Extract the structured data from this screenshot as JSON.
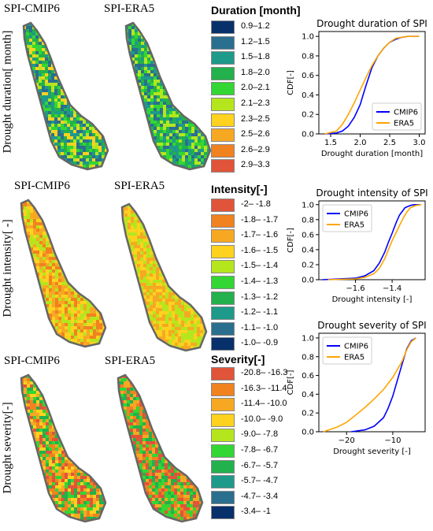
{
  "maps": {
    "col_titles": {
      "duration": [
        "SPI-CMIP6",
        "SPI-ERA5"
      ],
      "intensity": [
        "SPI-CMIP6",
        "SPI-ERA5"
      ],
      "severity": [
        "SPI-CMIP6",
        "SPI-ERA5"
      ]
    },
    "row_labels": {
      "duration": "Drought duration[ month]",
      "intensity": "Drought intensity[ -]",
      "severity": "Drought severity[-]"
    }
  },
  "legends": {
    "duration": {
      "title": "Duration [month]",
      "items": [
        {
          "label": "0.9–1.2",
          "color": "#08306b"
        },
        {
          "label": "1.2–1.5",
          "color": "#2b6f8e"
        },
        {
          "label": "1.5–1.8",
          "color": "#1e9a8a"
        },
        {
          "label": "1.8–2.0",
          "color": "#22b14c"
        },
        {
          "label": "2.0–2.1",
          "color": "#33d633"
        },
        {
          "label": "2.1–2.3",
          "color": "#b5e61d"
        },
        {
          "label": "2.3–2.5",
          "color": "#ffd21f"
        },
        {
          "label": "2.5–2.6",
          "color": "#f7a823"
        },
        {
          "label": "2.6–2.9",
          "color": "#f0821f"
        },
        {
          "label": "2.9–3.3",
          "color": "#e0543a"
        }
      ]
    },
    "intensity": {
      "title": "Intensity[-]",
      "items": [
        {
          "label": "-2– -1.8",
          "color": "#e0543a"
        },
        {
          "label": "-1.8– -1.7",
          "color": "#f0821f"
        },
        {
          "label": "-1.7– -1.6",
          "color": "#f7a823"
        },
        {
          "label": "-1.6– -1.5",
          "color": "#ffd21f"
        },
        {
          "label": "-1.5– -1.4",
          "color": "#b5e61d"
        },
        {
          "label": "-1.4– -1.3",
          "color": "#33d633"
        },
        {
          "label": "-1.3– -1.2",
          "color": "#22b14c"
        },
        {
          "label": "-1.2– -1.1",
          "color": "#1e9a8a"
        },
        {
          "label": "-1.1– -1.0",
          "color": "#2b6f8e"
        },
        {
          "label": "-1.0– -0.9",
          "color": "#08306b"
        }
      ]
    },
    "severity": {
      "title": "Severity[-]",
      "items": [
        {
          "label": "-20.8– -16.3",
          "color": "#e0543a"
        },
        {
          "label": "-16.3– -11.4",
          "color": "#f0821f"
        },
        {
          "label": "-11.4– -10.0",
          "color": "#f7a823"
        },
        {
          "label": "-10.0– -9.0",
          "color": "#ffd21f"
        },
        {
          "label": "-9.0– -7.8",
          "color": "#b5e61d"
        },
        {
          "label": "-7.8– -6.7",
          "color": "#33d633"
        },
        {
          "label": "-6.7– -5.7",
          "color": "#22b14c"
        },
        {
          "label": "-5.7– -4.7",
          "color": "#1e9a8a"
        },
        {
          "label": "-4.7– -3.4",
          "color": "#2b6f8e"
        },
        {
          "label": "-3.4– -1",
          "color": "#08306b"
        }
      ]
    }
  },
  "chart_data": [
    {
      "id": "duration",
      "type": "line",
      "title": "Drought duration of SPI",
      "xlabel": "Drought duration [month]",
      "ylabel": "CDF[-]",
      "xlim": [
        1.3,
        3.1
      ],
      "ylim": [
        0,
        1.05
      ],
      "xticks": [
        1.5,
        2.0,
        2.5,
        3.0
      ],
      "xtick_labels": [
        "1.5",
        "2.0",
        "2.5",
        "3.0"
      ],
      "yticks": [
        0,
        0.2,
        0.4,
        0.6,
        0.8,
        1.0
      ],
      "ytick_labels": [
        "0.0",
        "0.2",
        "0.4",
        "0.6",
        "0.8",
        "1.0"
      ],
      "legend_position": "lower-right",
      "series": [
        {
          "name": "CMIP6",
          "color": "#0000ff",
          "x": [
            1.4,
            1.6,
            1.7,
            1.8,
            1.9,
            2.0,
            2.05,
            2.1,
            2.2,
            2.3,
            2.4,
            2.5,
            2.6,
            2.7,
            2.8,
            2.9,
            3.0
          ],
          "y": [
            0.0,
            0.01,
            0.03,
            0.08,
            0.17,
            0.3,
            0.4,
            0.5,
            0.68,
            0.8,
            0.88,
            0.94,
            0.97,
            0.99,
            1.0,
            1.0,
            1.0
          ]
        },
        {
          "name": "ERA5",
          "color": "#ffa500",
          "x": [
            1.4,
            1.6,
            1.7,
            1.8,
            1.9,
            2.0,
            2.1,
            2.2,
            2.3,
            2.4,
            2.5,
            2.6,
            2.7,
            2.8,
            2.9,
            3.0
          ],
          "y": [
            0.0,
            0.03,
            0.1,
            0.2,
            0.32,
            0.45,
            0.58,
            0.7,
            0.8,
            0.88,
            0.94,
            0.98,
            0.99,
            1.0,
            1.0,
            1.0
          ]
        }
      ]
    },
    {
      "id": "intensity",
      "type": "line",
      "title": "Drought intensity of SPI",
      "xlabel": "Drought intensity [-]",
      "ylabel": "CDF[-]",
      "xlim": [
        -1.8,
        -1.22
      ],
      "ylim": [
        0,
        1.05
      ],
      "xticks": [
        -1.6,
        -1.4
      ],
      "xtick_labels": [
        "−1.6",
        "−1.4"
      ],
      "yticks": [
        0,
        0.2,
        0.4,
        0.6,
        0.8,
        1.0
      ],
      "ytick_labels": [
        "0.0",
        "0.2",
        "0.4",
        "0.6",
        "0.8",
        "1.0"
      ],
      "legend_position": "top-left",
      "series": [
        {
          "name": "CMIP6",
          "color": "#0000ff",
          "x": [
            -1.78,
            -1.6,
            -1.55,
            -1.5,
            -1.47,
            -1.44,
            -1.42,
            -1.4,
            -1.38,
            -1.36,
            -1.33,
            -1.3,
            -1.28,
            -1.25
          ],
          "y": [
            0.0,
            0.02,
            0.05,
            0.12,
            0.22,
            0.37,
            0.5,
            0.62,
            0.75,
            0.86,
            0.96,
            0.99,
            1.0,
            1.0
          ]
        },
        {
          "name": "ERA5",
          "color": "#ffa500",
          "x": [
            -1.75,
            -1.6,
            -1.55,
            -1.5,
            -1.47,
            -1.44,
            -1.42,
            -1.4,
            -1.38,
            -1.36,
            -1.34,
            -1.32,
            -1.3,
            -1.27,
            -1.24
          ],
          "y": [
            0.0,
            0.01,
            0.03,
            0.08,
            0.15,
            0.28,
            0.4,
            0.52,
            0.62,
            0.72,
            0.82,
            0.9,
            0.96,
            0.99,
            1.0
          ]
        }
      ]
    },
    {
      "id": "severity",
      "type": "line",
      "title": "Drought severity of SPI",
      "xlabel": "Drought severity [-]",
      "ylabel": "CDF[-]",
      "xlim": [
        -26,
        -3
      ],
      "ylim": [
        0,
        1.05
      ],
      "xticks": [
        -20,
        -10
      ],
      "xtick_labels": [
        "−20",
        "−10"
      ],
      "yticks": [
        0,
        0.2,
        0.4,
        0.6,
        0.8,
        1.0
      ],
      "ytick_labels": [
        "0.0",
        "0.2",
        "0.4",
        "0.6",
        "0.8",
        "1.0"
      ],
      "legend_position": "top-left",
      "series": [
        {
          "name": "CMIP6",
          "color": "#0000ff",
          "x": [
            -19,
            -16,
            -14,
            -12,
            -11,
            -10,
            -9,
            -8,
            -7,
            -6,
            -5
          ],
          "y": [
            0.0,
            0.02,
            0.06,
            0.15,
            0.25,
            0.38,
            0.55,
            0.72,
            0.88,
            0.97,
            1.0
          ]
        },
        {
          "name": "ERA5",
          "color": "#ffa500",
          "x": [
            -25,
            -22,
            -20,
            -18,
            -16,
            -14,
            -12,
            -10,
            -8,
            -7,
            -6,
            -5
          ],
          "y": [
            0.0,
            0.05,
            0.1,
            0.18,
            0.26,
            0.35,
            0.45,
            0.58,
            0.75,
            0.87,
            0.96,
            1.0
          ]
        }
      ]
    }
  ]
}
